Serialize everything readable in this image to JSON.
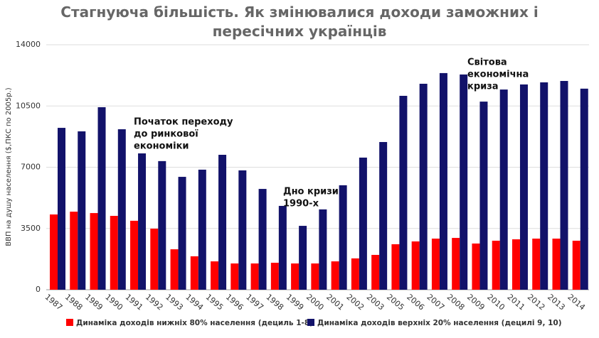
{
  "chart_data": {
    "type": "bar",
    "title": "Стагнуюча більшість. Як змінювалися доходи заможних і пересічних українців",
    "y_label": "ВВП на душу населення ($,ПКС по 2005р.)",
    "categories": [
      "1987",
      "1988",
      "1989",
      "1990",
      "1991",
      "1992",
      "1993",
      "1994",
      "1995",
      "1996",
      "1997",
      "1998",
      "1999",
      "2000",
      "2001",
      "2002",
      "2003",
      "2005",
      "2006",
      "2007",
      "2008",
      "2009",
      "2010",
      "2011",
      "2012",
      "2013",
      "2014"
    ],
    "series": [
      {
        "name": "Динаміка доходів нижніх 80% населення (дециль 1-8)",
        "color": "#ff0000",
        "values": [
          4300,
          4460,
          4380,
          4220,
          3940,
          3490,
          2310,
          1910,
          1620,
          1500,
          1500,
          1540,
          1500,
          1500,
          1620,
          1790,
          1990,
          2600,
          2760,
          2920,
          2960,
          2640,
          2800,
          2880,
          2920,
          2920,
          2800
        ]
      },
      {
        "name": "Динаміка доходів верхніх 20% населення (децилі 9, 10)",
        "color": "#12126a",
        "values": [
          9250,
          9050,
          10430,
          9170,
          7790,
          7350,
          6450,
          6860,
          7710,
          6820,
          5760,
          4790,
          3650,
          4590,
          5970,
          7550,
          8440,
          11080,
          11770,
          12380,
          12300,
          10750,
          11440,
          11730,
          11850,
          11930,
          11490
        ]
      }
    ],
    "ylim": [
      0,
      14000
    ],
    "yticks": [
      0,
      3500,
      7000,
      10500,
      14000
    ],
    "grid": true,
    "annotations": [
      [
        "Початок переходу",
        "до ринкової",
        "економіки"
      ],
      [
        "Дно кризи",
        "1990-х"
      ],
      [
        "Світова",
        "економічна",
        "криза"
      ]
    ]
  }
}
